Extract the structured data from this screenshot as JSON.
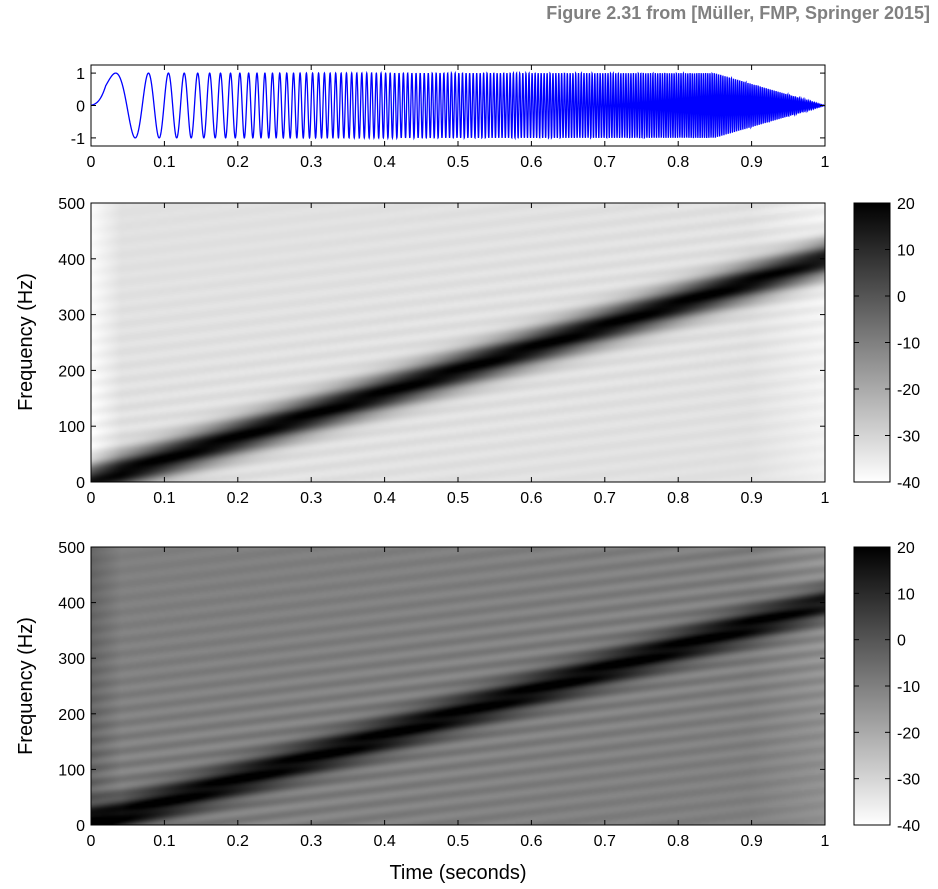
{
  "caption": "Figure 2.31 from [Müller, FMP, Springer 2015]",
  "colors": {
    "waveform": "#0000ff",
    "colormap": "gray-reversed",
    "frame": "#000000"
  },
  "chart_data": [
    {
      "type": "line",
      "description_of_signal": "linear chirp",
      "x": {
        "ticks": [
          "0",
          "0.1",
          "0.2",
          "0.3",
          "0.4",
          "0.5",
          "0.6",
          "0.7",
          "0.8",
          "0.9",
          "1"
        ],
        "lim": [
          0,
          1
        ]
      },
      "y": {
        "ticks": [
          "1",
          "0",
          "-1"
        ],
        "lim": [
          -1.25,
          1.25
        ]
      },
      "signal": {
        "f_start_hz": 0,
        "f_end_hz": 400,
        "fade_in_end_s": 0.02,
        "fade_out_start_s": 0.85,
        "amplitude": 1
      }
    },
    {
      "type": "heatmap",
      "x": {
        "ticks": [
          "0",
          "0.1",
          "0.2",
          "0.3",
          "0.4",
          "0.5",
          "0.6",
          "0.7",
          "0.8",
          "0.9",
          "1"
        ],
        "lim": [
          0,
          1
        ]
      },
      "y": {
        "label": "Frequency (Hz)",
        "ticks": [
          "500",
          "400",
          "300",
          "200",
          "100",
          "0"
        ],
        "lim": [
          0,
          500
        ]
      },
      "ridge": {
        "from": [
          0,
          0
        ],
        "to": [
          1,
          400
        ]
      },
      "colorbar": {
        "ticks": [
          "20",
          "10",
          "0",
          "-10",
          "-20",
          "-30",
          "-40"
        ],
        "lim": [
          -40,
          20
        ]
      },
      "background_db": -33
    },
    {
      "type": "heatmap",
      "x": {
        "label": "Time (seconds)",
        "ticks": [
          "0",
          "0.1",
          "0.2",
          "0.3",
          "0.4",
          "0.5",
          "0.6",
          "0.7",
          "0.8",
          "0.9",
          "1"
        ],
        "lim": [
          0,
          1
        ]
      },
      "y": {
        "label": "Frequency (Hz)",
        "ticks": [
          "500",
          "400",
          "300",
          "200",
          "100",
          "0"
        ],
        "lim": [
          0,
          500
        ]
      },
      "ridge": {
        "from": [
          0,
          0
        ],
        "to": [
          1,
          400
        ]
      },
      "colorbar": {
        "ticks": [
          "20",
          "10",
          "0",
          "-10",
          "-20",
          "-30",
          "-40"
        ],
        "lim": [
          -40,
          20
        ]
      },
      "background_db": -10
    }
  ]
}
